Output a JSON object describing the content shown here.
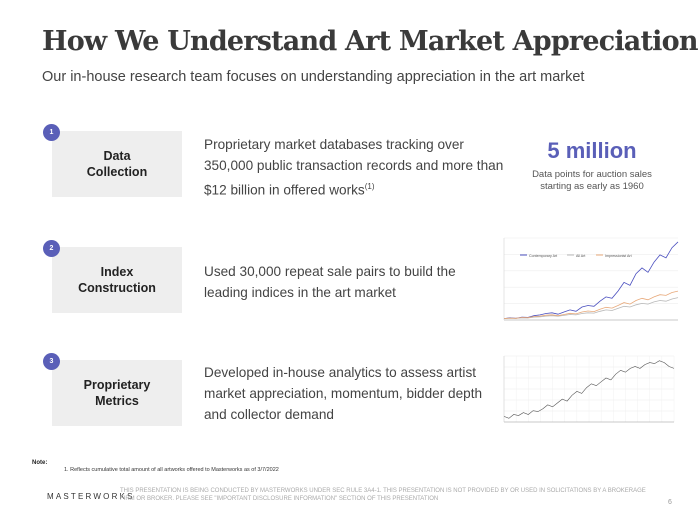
{
  "header": {
    "title": "How We Understand Art Market Appreciation",
    "subtitle": "Our in-house research team focuses on understanding appreciation in the art market"
  },
  "steps": [
    {
      "number": "1",
      "label_lines": [
        "Data",
        "Collection"
      ],
      "description_lines": [
        "Proprietary market databases tracking over",
        "350,000 public transaction records and more than",
        "$12 billion in offered works"
      ],
      "footnote_marker": "(1)"
    },
    {
      "number": "2",
      "label_lines": [
        "Index",
        "Construction"
      ],
      "description_lines": [
        "Used 30,000 repeat sale pairs to build the",
        "leading indices in the art market"
      ]
    },
    {
      "number": "3",
      "label_lines": [
        "Proprietary",
        "Metrics"
      ],
      "description_lines": [
        "Developed in-house analytics to assess artist",
        "market appreciation, momentum, bidder depth",
        "and collector demand"
      ]
    }
  ],
  "stat": {
    "value": "5 million",
    "caption_lines": [
      "Data points for auction sales",
      "starting as early as 1960"
    ]
  },
  "chart_data": [
    {
      "type": "line",
      "title": "",
      "series": [
        {
          "name": "Contemporary Art",
          "color": "#4a4fbf",
          "values": [
            0.1,
            0.15,
            0.12,
            0.2,
            0.18,
            0.3,
            0.35,
            0.45,
            0.5,
            0.4,
            0.55,
            0.7,
            0.6,
            0.9,
            1.0,
            0.95,
            1.3,
            1.6,
            1.5,
            2.0,
            2.6,
            2.4,
            3.2,
            3.6,
            3.3,
            4.0,
            4.5,
            4.3,
            5.0,
            5.4
          ]
        },
        {
          "name": "All Art",
          "color": "#b8b8b8",
          "values": [
            0.1,
            0.12,
            0.11,
            0.15,
            0.14,
            0.2,
            0.22,
            0.27,
            0.3,
            0.26,
            0.32,
            0.38,
            0.35,
            0.45,
            0.5,
            0.48,
            0.6,
            0.7,
            0.66,
            0.8,
            0.95,
            0.9,
            1.05,
            1.15,
            1.1,
            1.25,
            1.35,
            1.3,
            1.45,
            1.55
          ]
        },
        {
          "name": "Impressionist Art",
          "color": "#e8a97a",
          "values": [
            0.1,
            0.13,
            0.12,
            0.17,
            0.16,
            0.24,
            0.27,
            0.33,
            0.36,
            0.3,
            0.38,
            0.46,
            0.42,
            0.55,
            0.62,
            0.58,
            0.75,
            0.88,
            0.82,
            1.0,
            1.2,
            1.1,
            1.35,
            1.5,
            1.4,
            1.6,
            1.75,
            1.7,
            1.9,
            2.0
          ]
        }
      ]
    },
    {
      "type": "line",
      "title": "",
      "series": [
        {
          "name": "",
          "color": "#555555",
          "values": [
            2.0,
            1.9,
            2.1,
            2.05,
            2.2,
            2.1,
            2.3,
            2.25,
            2.4,
            2.6,
            2.5,
            2.7,
            2.9,
            2.8,
            3.1,
            3.3,
            3.2,
            3.5,
            3.7,
            3.6,
            3.8,
            4.0,
            3.9,
            4.2,
            4.4,
            4.3,
            4.5,
            4.6,
            4.5,
            4.7,
            4.8,
            4.75,
            4.9,
            4.8,
            4.6,
            4.5
          ]
        }
      ]
    }
  ],
  "footnote": {
    "label": "Note:",
    "text": "1.    Reflects cumulative total amount of all artworks offered to Masterworks as of 3/7/2022"
  },
  "footer": {
    "logo": "MASTERWORKS",
    "disclaimer_lines": [
      "THIS PRESENTATION  IS BEING CONDUCTED BY MASTERWORKS UNDER SEC RULE 3A4-1. THIS PRESENTATION  IS NOT PROVIDED BY OR USED IN SOLICITATIONS BY A BROKERAGE",
      "FIRM OR BROKER. PLEASE SEE \"IMPORTANT DISCLOSURE INFORMATION\" SECTION OF THIS PRESENTATION"
    ],
    "page_number": "6"
  }
}
